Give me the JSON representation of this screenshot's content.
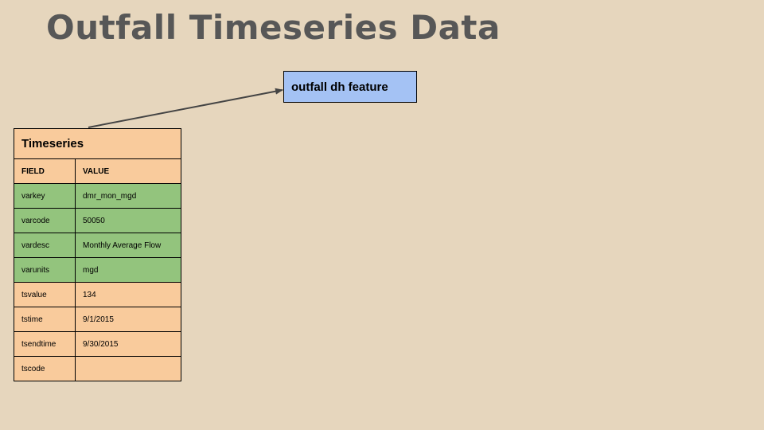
{
  "title": "Outfall Timeseries Data",
  "feature_box": {
    "label": "outfall dh feature"
  },
  "table": {
    "caption": "Timeseries",
    "headers": {
      "field": "FIELD",
      "value": "VALUE"
    },
    "rows": [
      {
        "field": "varkey",
        "value": "dmr_mon_mgd",
        "color": "green"
      },
      {
        "field": "varcode",
        "value": "50050",
        "color": "green"
      },
      {
        "field": "vardesc",
        "value": "Monthly Average Flow",
        "color": "green"
      },
      {
        "field": "varunits",
        "value": "mgd",
        "color": "green"
      },
      {
        "field": "tsvalue",
        "value": "134",
        "color": "orange"
      },
      {
        "field": "tstime",
        "value": "9/1/2015",
        "color": "orange"
      },
      {
        "field": "tsendtime",
        "value": "9/30/2015",
        "color": "orange"
      },
      {
        "field": "tscode",
        "value": "",
        "color": "orange"
      }
    ]
  },
  "colors": {
    "background": "#e6d6bd",
    "title": "#575757",
    "feature_box": "#a4c2f4",
    "orange_rows": "#f9cb9c",
    "green_rows": "#93c47d",
    "arrow": "#444444"
  }
}
